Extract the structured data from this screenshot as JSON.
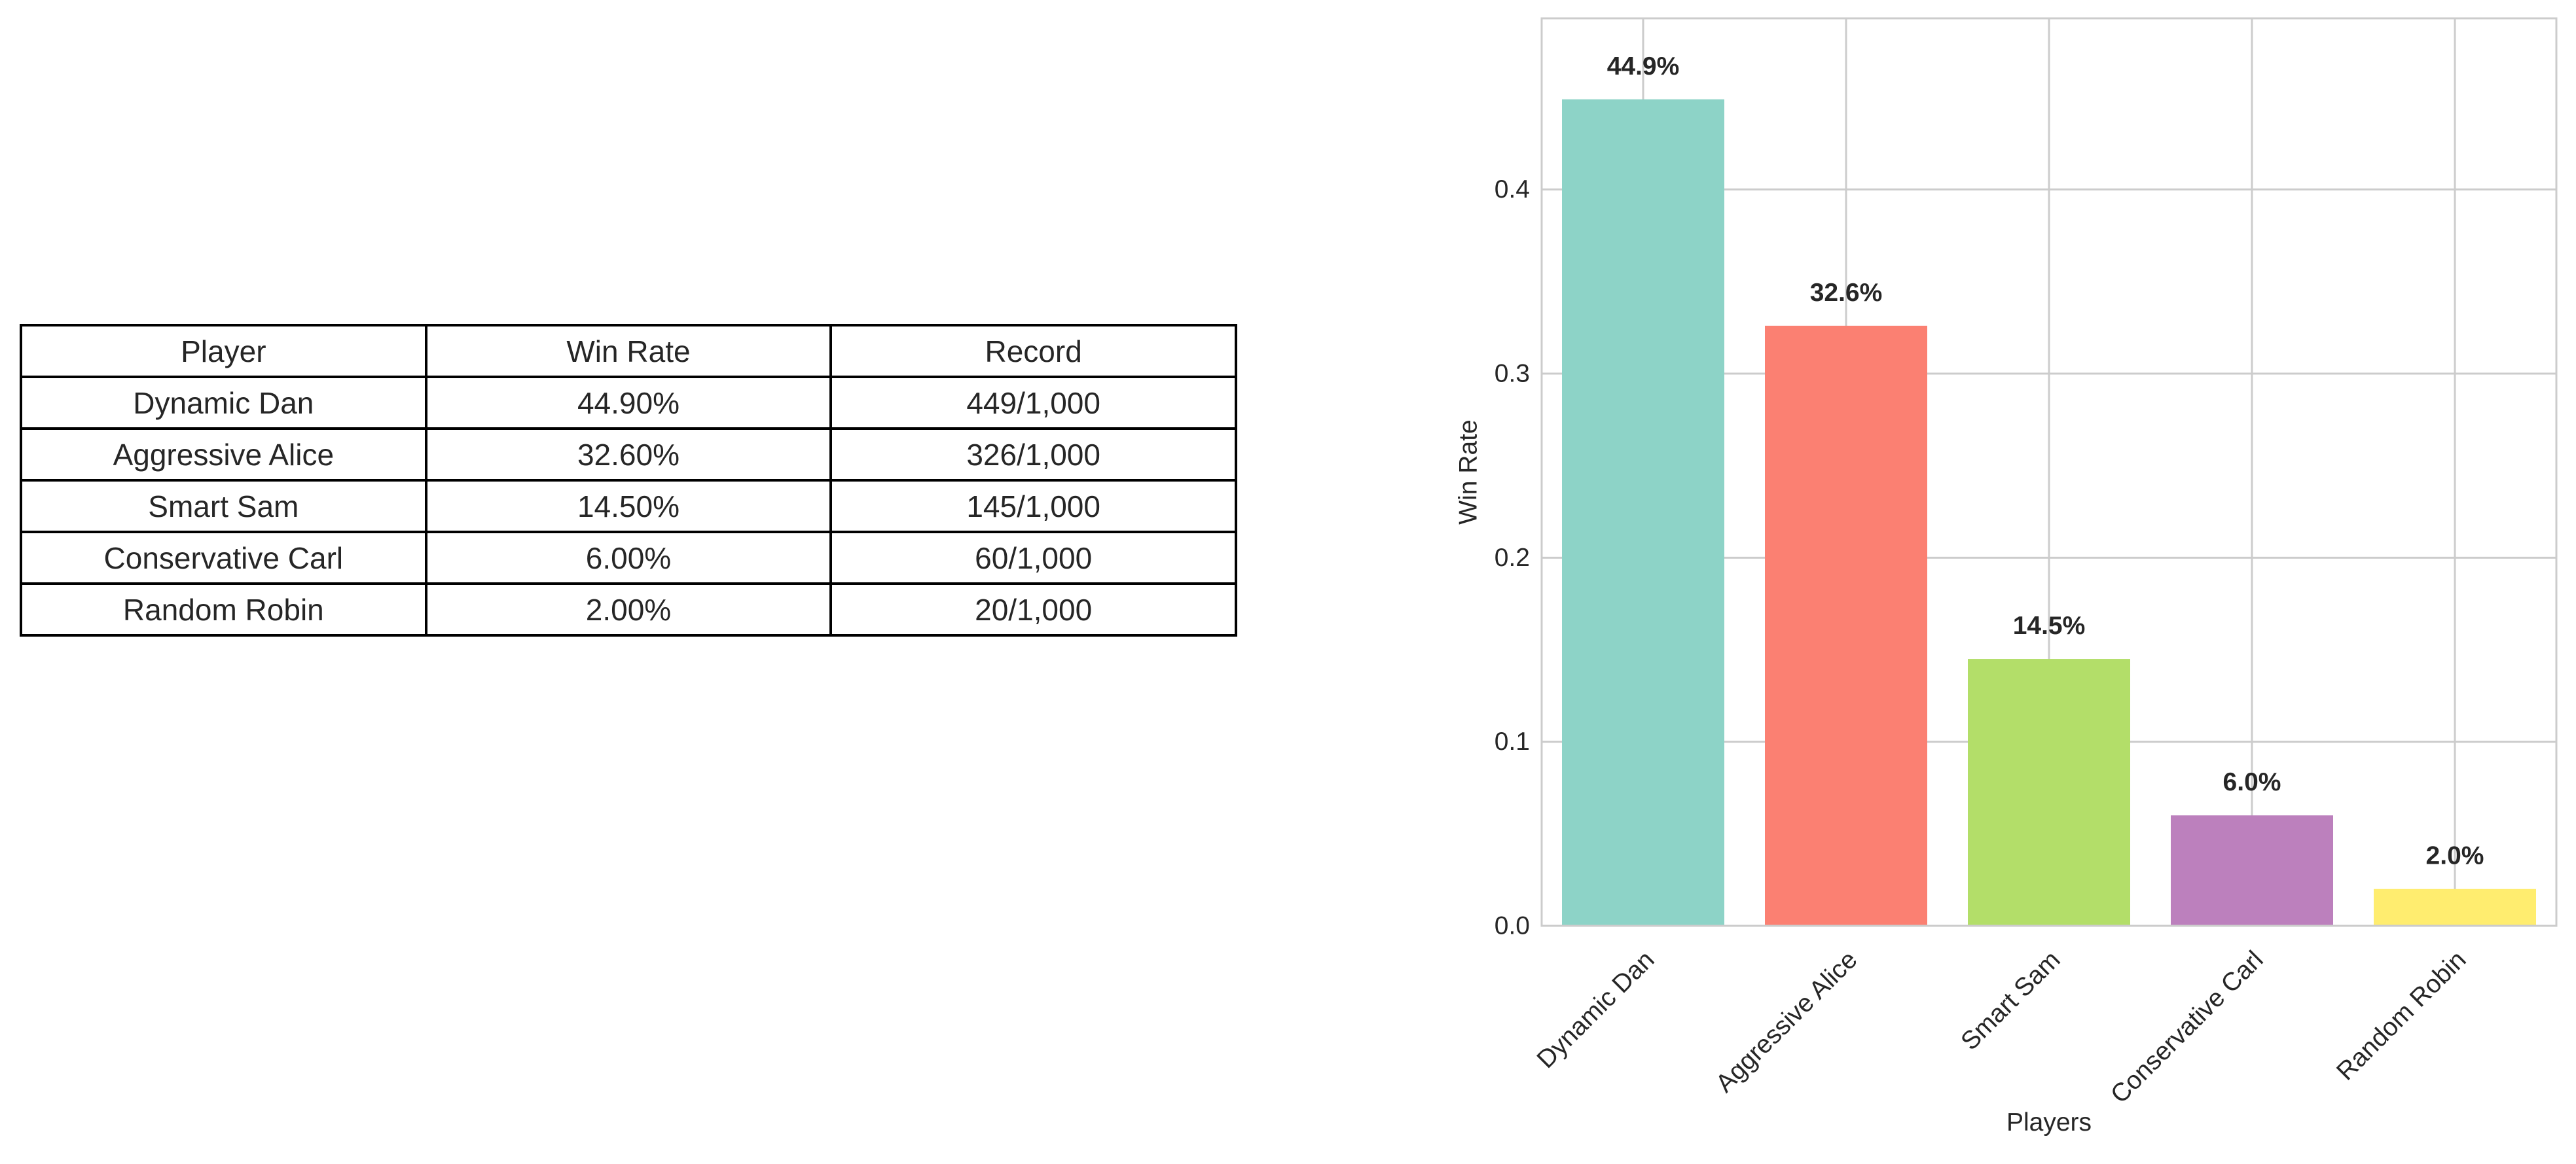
{
  "table": {
    "headers": [
      "Player",
      "Win Rate",
      "Record"
    ],
    "rows": [
      [
        "Dynamic Dan",
        "44.90%",
        "449/1,000"
      ],
      [
        "Aggressive Alice",
        "32.60%",
        "326/1,000"
      ],
      [
        "Smart Sam",
        "14.50%",
        "145/1,000"
      ],
      [
        "Conservative Carl",
        "6.00%",
        "60/1,000"
      ],
      [
        "Random Robin",
        "2.00%",
        "20/1,000"
      ]
    ]
  },
  "chart_data": {
    "type": "bar",
    "categories": [
      "Dynamic Dan",
      "Aggressive Alice",
      "Smart Sam",
      "Conservative Carl",
      "Random Robin"
    ],
    "values": [
      0.449,
      0.326,
      0.145,
      0.06,
      0.02
    ],
    "value_labels": [
      "44.9%",
      "32.6%",
      "14.5%",
      "6.0%",
      "2.0%"
    ],
    "colors": [
      "#8dd3c7",
      "#fb8072",
      "#b3de69",
      "#bc80bd",
      "#ffed6f"
    ],
    "xlabel": "Players",
    "ylabel": "Win Rate",
    "ylim": [
      0,
      0.493
    ],
    "yticks": [
      0.0,
      0.1,
      0.2,
      0.3,
      0.4
    ],
    "ytick_labels": [
      "0.0",
      "0.1",
      "0.2",
      "0.3",
      "0.4"
    ],
    "grid": true,
    "grid_color": "#cccccc",
    "spine_color": "#cccccc"
  }
}
